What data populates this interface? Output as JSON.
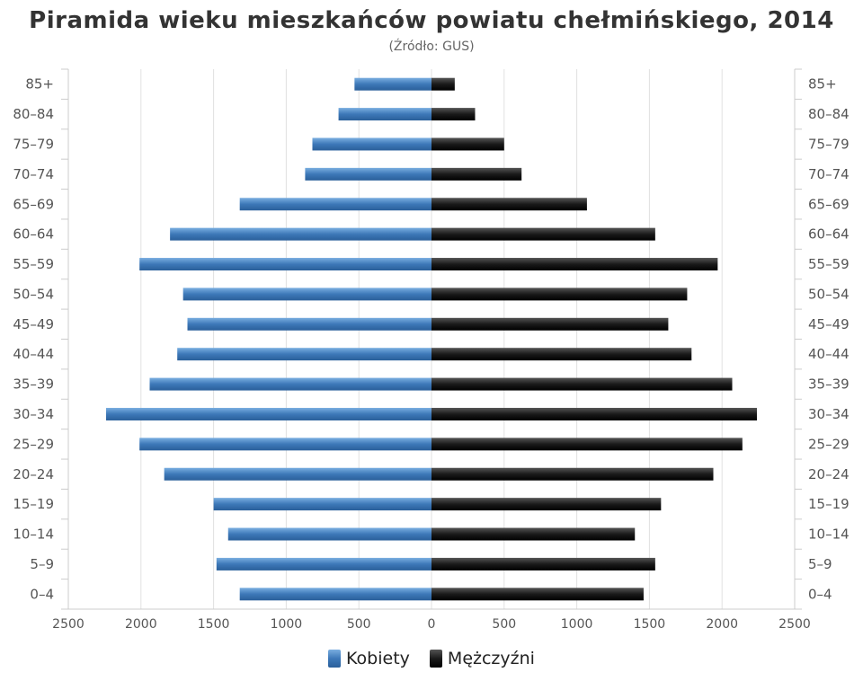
{
  "chart_data": {
    "type": "bar",
    "orientation": "horizontal",
    "layout": "population-pyramid",
    "title": "Piramida wieku mieszkańców powiatu chełmińskiego, 2014",
    "subtitle": "(Źródło: GUS)",
    "categories": [
      "85+",
      "80–84",
      "75–79",
      "70–74",
      "65–69",
      "60–64",
      "55–59",
      "50–54",
      "45–49",
      "40–44",
      "35–39",
      "30–34",
      "25–29",
      "20–24",
      "15–19",
      "10–14",
      "5–9",
      "0–4"
    ],
    "series": [
      {
        "name": "Kobiety",
        "color": "#4a86c5",
        "side": "left",
        "values": [
          530,
          640,
          820,
          870,
          1320,
          1800,
          2010,
          1710,
          1680,
          1750,
          1940,
          2240,
          2010,
          1840,
          1500,
          1400,
          1480,
          1320
        ]
      },
      {
        "name": "Mężczyźni",
        "color": "#1a1a1a",
        "side": "right",
        "values": [
          160,
          300,
          500,
          620,
          1070,
          1540,
          1970,
          1760,
          1630,
          1790,
          2070,
          2240,
          2140,
          1940,
          1580,
          1400,
          1540,
          1460
        ]
      }
    ],
    "xlim": [
      -2500,
      2500
    ],
    "xticks": [
      "2500",
      "2000",
      "1500",
      "1000",
      "500",
      "0",
      "500",
      "1000",
      "1500",
      "2000",
      "2500"
    ],
    "grid": true,
    "legend_position": "bottom"
  }
}
